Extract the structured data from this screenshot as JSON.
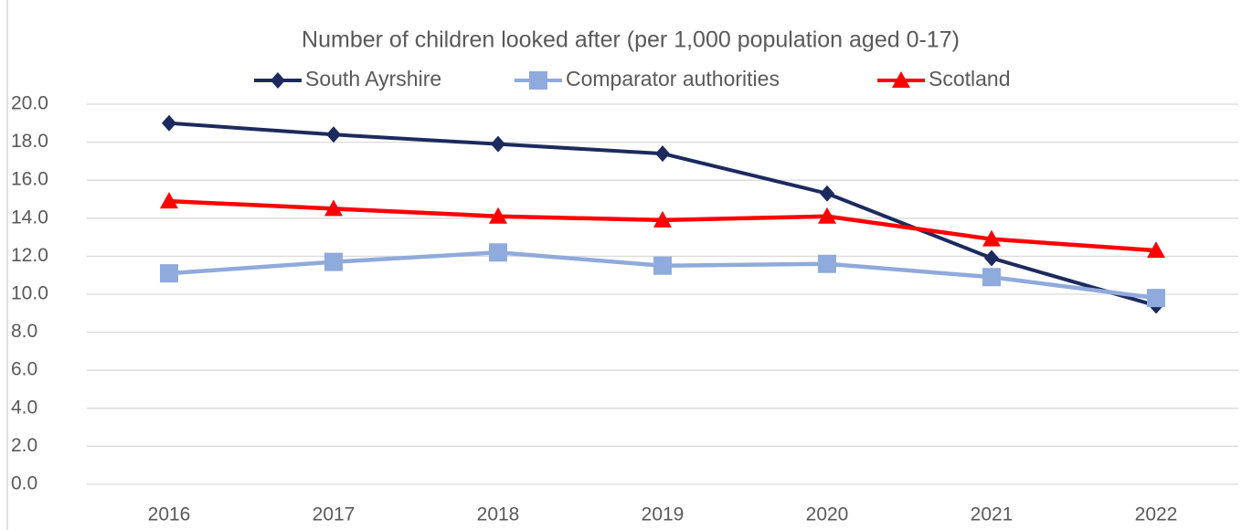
{
  "chart_data": {
    "type": "line",
    "title": "Number of children looked after (per 1,000 population aged 0-17)",
    "categories": [
      "2016",
      "2017",
      "2018",
      "2019",
      "2020",
      "2021",
      "2022"
    ],
    "series": [
      {
        "name": "South Ayrshire",
        "color": "#1c2a5e",
        "marker": "diamond",
        "values": [
          19.0,
          18.4,
          17.9,
          17.4,
          15.3,
          11.9,
          9.4
        ]
      },
      {
        "name": "Comparator authorities",
        "color": "#8faadc",
        "marker": "square",
        "values": [
          11.1,
          11.7,
          12.2,
          11.5,
          11.6,
          10.9,
          9.8
        ]
      },
      {
        "name": "Scotland",
        "color": "#ff0000",
        "marker": "triangle",
        "values": [
          14.9,
          14.5,
          14.1,
          13.9,
          14.1,
          12.9,
          12.3
        ]
      }
    ],
    "ylim": [
      0,
      20
    ],
    "yticks": [
      {
        "value": 0,
        "label": "0.0"
      },
      {
        "value": 2,
        "label": "2.0"
      },
      {
        "value": 4,
        "label": "4.0"
      },
      {
        "value": 6,
        "label": "6.0"
      },
      {
        "value": 8,
        "label": "8.0"
      },
      {
        "value": 10,
        "label": "10.0"
      },
      {
        "value": 12,
        "label": "12.0"
      },
      {
        "value": 14,
        "label": "14.0"
      },
      {
        "value": 16,
        "label": "16.0"
      },
      {
        "value": 18,
        "label": "18.0"
      },
      {
        "value": 20,
        "label": "20.0"
      }
    ],
    "grid": true,
    "legend": "top"
  }
}
